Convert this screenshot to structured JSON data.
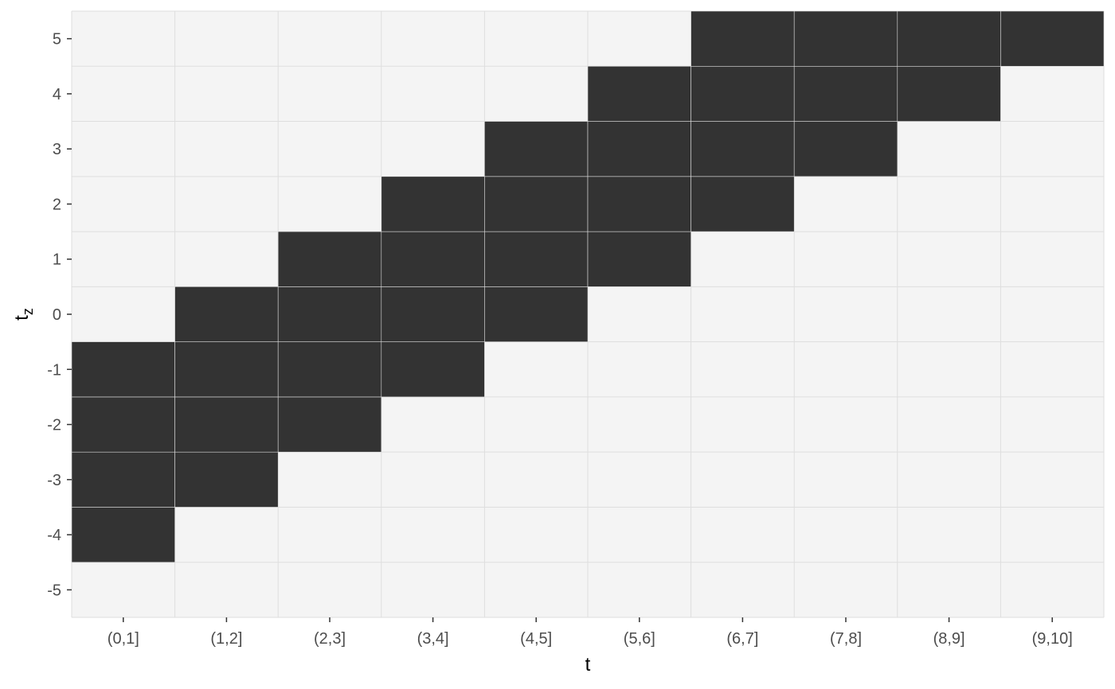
{
  "chart_data": {
    "type": "heatmap",
    "title": "",
    "xlabel": "t",
    "ylabel": "t",
    "ylabel_subscript": "z",
    "x_categories": [
      "(0,1]",
      "(1,2]",
      "(2,3]",
      "(3,4]",
      "(4,5]",
      "(5,6]",
      "(6,7]",
      "(7,8]",
      "(8,9]",
      "(9,10]"
    ],
    "y_values": [
      -5,
      -4,
      -3,
      -2,
      -1,
      0,
      1,
      2,
      3,
      4,
      5
    ],
    "y_tick_labels": [
      "-5",
      "-4",
      "-3",
      "-2",
      "-1",
      "0",
      "1",
      "2",
      "3",
      "4",
      "5"
    ],
    "filled_cells": [
      {
        "x": "(0,1]",
        "y": [
          -4,
          -3,
          -2,
          -1
        ]
      },
      {
        "x": "(1,2]",
        "y": [
          -3,
          -2,
          -1,
          0
        ]
      },
      {
        "x": "(2,3]",
        "y": [
          -2,
          -1,
          0,
          1
        ]
      },
      {
        "x": "(3,4]",
        "y": [
          -1,
          0,
          1,
          2
        ]
      },
      {
        "x": "(4,5]",
        "y": [
          0,
          1,
          2,
          3
        ]
      },
      {
        "x": "(5,6]",
        "y": [
          1,
          2,
          3,
          4
        ]
      },
      {
        "x": "(6,7]",
        "y": [
          2,
          3,
          4,
          5
        ]
      },
      {
        "x": "(7,8]",
        "y": [
          3,
          4,
          5
        ]
      },
      {
        "x": "(8,9]",
        "y": [
          4,
          5
        ]
      },
      {
        "x": "(9,10]",
        "y": [
          5
        ]
      }
    ],
    "grid": true,
    "legend": "none",
    "colors": {
      "panel_background": "#f4f4f4",
      "grid": "#dedede",
      "filled": "#333333",
      "tick": "#333333"
    }
  }
}
